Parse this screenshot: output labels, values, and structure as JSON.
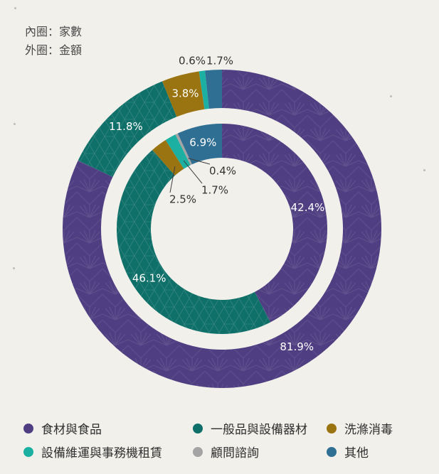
{
  "notes": {
    "inner": "內圈：家數",
    "outer": "外圈：金額"
  },
  "colors": {
    "background": "#f2f0eb",
    "purple": "#4f3f82",
    "teal_dark": "#0f6f69",
    "olive": "#9a7411",
    "teal_light": "#1bb0a2",
    "gray": "#a4a4a4",
    "blue": "#2f6f93"
  },
  "chart_data": {
    "type": "pie",
    "categories": [
      "食材與食品",
      "一般品與設備器材",
      "洗滌消毒",
      "設備維運與事務機租賃",
      "顧問諮詢",
      "其他"
    ],
    "series": [
      {
        "values": [
          42.4,
          46.1,
          2.5,
          1.7,
          0.4,
          6.9
        ]
      },
      {
        "values": [
          81.9,
          11.8,
          3.8,
          0.6,
          0.0,
          1.7
        ]
      }
    ],
    "inner_labels": [
      "42.4%",
      "46.1%",
      "2.5%",
      "1.7%",
      "0.4%",
      "6.9%"
    ],
    "outer_labels": [
      "81.9%",
      "11.8%",
      "3.8%",
      "0.6%",
      "",
      "1.7%"
    ]
  },
  "legend": [
    {
      "label": "食材與食品",
      "color": "#4f3f82"
    },
    {
      "label": "一般品與設備器材",
      "color": "#0f6f69"
    },
    {
      "label": "洗滌消毒",
      "color": "#9a7411"
    },
    {
      "label": "設備維運與事務機租賃",
      "color": "#1bb0a2"
    },
    {
      "label": "顧問諮詢",
      "color": "#a4a4a4"
    },
    {
      "label": "其他",
      "color": "#2f6f93"
    }
  ]
}
